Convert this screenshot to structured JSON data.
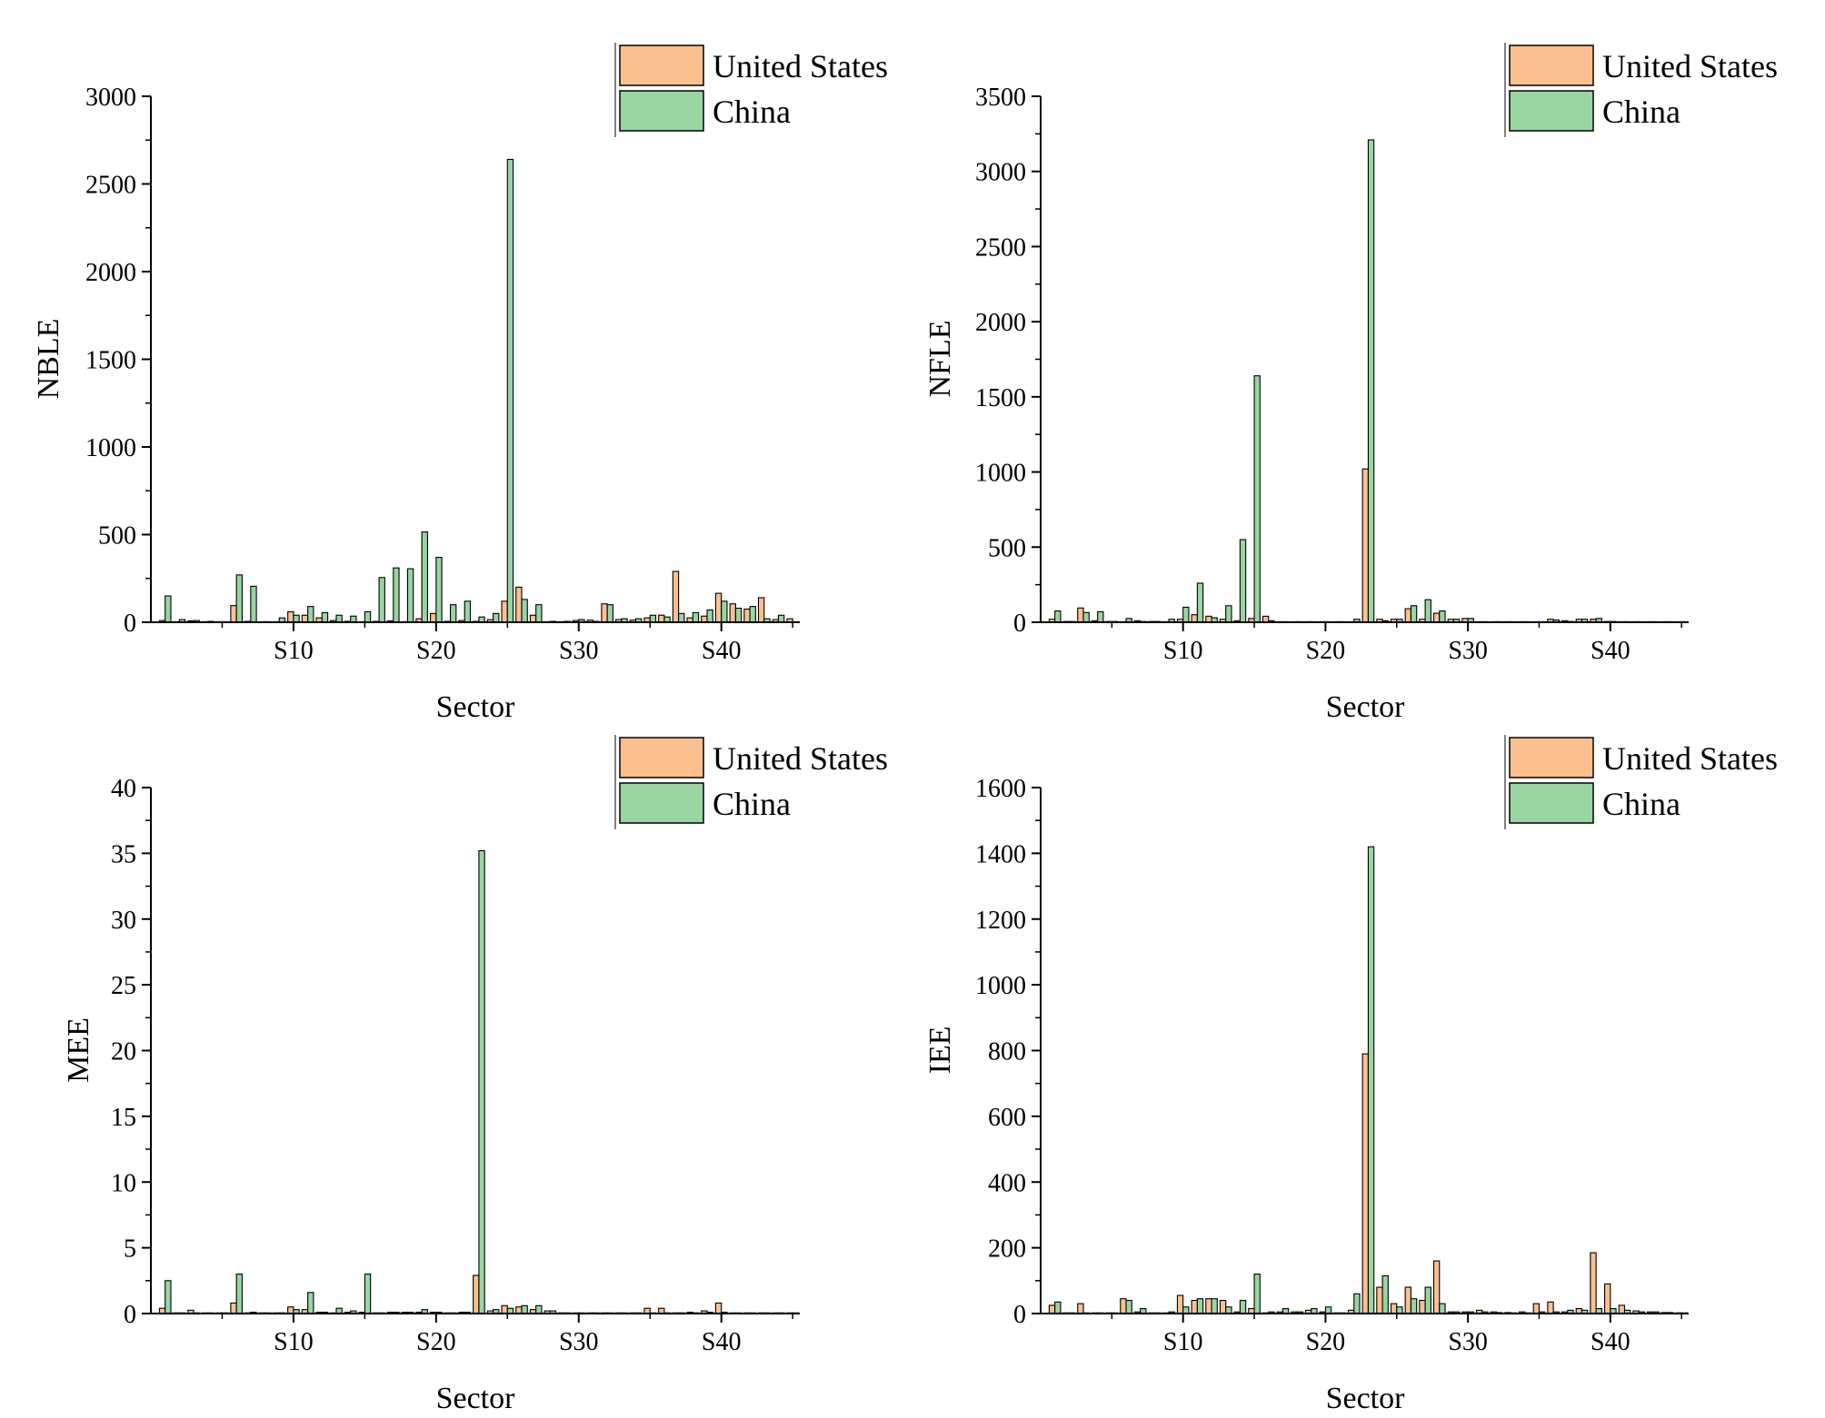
{
  "colors": {
    "us": "#fac090",
    "china": "#98d5a0",
    "edge": "#000000"
  },
  "chart_data": [
    {
      "type": "bar",
      "id": "nble",
      "ylabel": "NBLE",
      "xlabel": "Sector",
      "ylim": [
        0,
        3000
      ],
      "yticks": [
        "0",
        "500",
        "1000",
        "1500",
        "2000",
        "2500",
        "3000"
      ],
      "ytick_values": [
        0,
        500,
        1000,
        1500,
        2000,
        2500,
        3000
      ],
      "xticks": [
        "S10",
        "S20",
        "S30",
        "S40"
      ],
      "xtick_sectors": [
        10,
        20,
        30,
        40
      ],
      "legend": [
        "United States",
        "China"
      ],
      "legend_position": "top-right",
      "series": [
        {
          "name": "United States",
          "values": [
            10,
            2,
            8,
            3,
            2,
            95,
            5,
            2,
            3,
            60,
            40,
            25,
            10,
            5,
            2,
            5,
            8,
            3,
            20,
            50,
            5,
            10,
            5,
            15,
            120,
            200,
            40,
            2,
            3,
            10,
            12,
            105,
            15,
            12,
            25,
            40,
            290,
            25,
            35,
            165,
            105,
            75,
            140,
            15,
            20
          ]
        },
        {
          "name": "China",
          "values": [
            150,
            15,
            10,
            5,
            2,
            270,
            205,
            2,
            25,
            40,
            90,
            55,
            40,
            35,
            60,
            255,
            310,
            305,
            515,
            370,
            100,
            120,
            30,
            50,
            2640,
            130,
            100,
            5,
            5,
            15,
            5,
            100,
            20,
            20,
            40,
            30,
            50,
            55,
            70,
            120,
            80,
            90,
            20,
            40,
            3
          ]
        }
      ]
    },
    {
      "type": "bar",
      "id": "nfle",
      "ylabel": "NFLE",
      "xlabel": "Sector",
      "ylim": [
        0,
        3500
      ],
      "yticks": [
        "0",
        "500",
        "1000",
        "1500",
        "2000",
        "2500",
        "3000",
        "3500"
      ],
      "ytick_values": [
        0,
        500,
        1000,
        1500,
        2000,
        2500,
        3000,
        3500
      ],
      "xticks": [
        "S10",
        "S20",
        "S30",
        "S40"
      ],
      "xtick_sectors": [
        10,
        20,
        30,
        40
      ],
      "legend": [
        "United States",
        "China"
      ],
      "legend_position": "top-right",
      "series": [
        {
          "name": "United States",
          "values": [
            20,
            5,
            95,
            10,
            5,
            2,
            10,
            5,
            2,
            20,
            50,
            40,
            20,
            10,
            25,
            40,
            2,
            2,
            2,
            2,
            2,
            2,
            1020,
            20,
            20,
            90,
            20,
            60,
            20,
            25,
            2,
            2,
            2,
            2,
            2,
            20,
            10,
            20,
            20,
            5,
            2,
            2,
            2,
            2,
            2
          ]
        },
        {
          "name": "China",
          "values": [
            75,
            5,
            65,
            70,
            5,
            25,
            5,
            5,
            20,
            100,
            260,
            30,
            110,
            550,
            1640,
            10,
            2,
            2,
            2,
            2,
            2,
            20,
            3210,
            10,
            20,
            110,
            150,
            75,
            20,
            25,
            2,
            2,
            2,
            2,
            2,
            15,
            5,
            20,
            25,
            5,
            2,
            2,
            2,
            2,
            2
          ]
        }
      ]
    },
    {
      "type": "bar",
      "id": "mee",
      "ylabel": "MEE",
      "xlabel": "Sector",
      "ylim": [
        0,
        40
      ],
      "yticks": [
        "0",
        "5",
        "10",
        "15",
        "20",
        "25",
        "30",
        "35",
        "40"
      ],
      "ytick_values": [
        0,
        5,
        10,
        15,
        20,
        25,
        30,
        35,
        40
      ],
      "xticks": [
        "S10",
        "S20",
        "S30",
        "S40"
      ],
      "xtick_sectors": [
        10,
        20,
        30,
        40
      ],
      "legend": [
        "United States",
        "China"
      ],
      "legend_position": "top-right",
      "series": [
        {
          "name": "United States",
          "values": [
            0.4,
            0.05,
            0.25,
            0.05,
            0.05,
            0.8,
            0.05,
            0.05,
            0.05,
            0.5,
            0.3,
            0.1,
            0.05,
            0.1,
            0.1,
            0.05,
            0.1,
            0.1,
            0.1,
            0.1,
            0.05,
            0.1,
            2.9,
            0.2,
            0.6,
            0.5,
            0.3,
            0.2,
            0.05,
            0.05,
            0.05,
            0.05,
            0.05,
            0.05,
            0.4,
            0.4,
            0.05,
            0.1,
            0.2,
            0.8,
            0.05,
            0.05,
            0.05,
            0.05,
            0.05
          ]
        },
        {
          "name": "China",
          "values": [
            2.5,
            0.05,
            0.05,
            0.05,
            0.05,
            3.0,
            0.1,
            0.05,
            0.05,
            0.3,
            1.6,
            0.1,
            0.4,
            0.2,
            3.0,
            0.05,
            0.1,
            0.1,
            0.3,
            0.1,
            0.05,
            0.1,
            35.2,
            0.3,
            0.4,
            0.6,
            0.6,
            0.2,
            0.05,
            0.05,
            0.05,
            0.05,
            0.05,
            0.05,
            0.05,
            0.05,
            0.05,
            0.05,
            0.1,
            0.1,
            0.05,
            0.05,
            0.05,
            0.05,
            0.05
          ]
        }
      ]
    },
    {
      "type": "bar",
      "id": "iee",
      "ylabel": "IEE",
      "xlabel": "Sector",
      "ylim": [
        0,
        1600
      ],
      "yticks": [
        "0",
        "200",
        "400",
        "600",
        "800",
        "1000",
        "1200",
        "1400",
        "1600"
      ],
      "ytick_values": [
        0,
        200,
        400,
        600,
        800,
        1000,
        1200,
        1400,
        1600
      ],
      "xticks": [
        "S10",
        "S20",
        "S30",
        "S40"
      ],
      "xtick_sectors": [
        10,
        20,
        30,
        40
      ],
      "legend": [
        "United States",
        "China"
      ],
      "legend_position": "top-right",
      "series": [
        {
          "name": "United States",
          "values": [
            25,
            2,
            30,
            2,
            2,
            45,
            5,
            2,
            2,
            55,
            40,
            45,
            40,
            5,
            15,
            2,
            5,
            5,
            10,
            5,
            2,
            10,
            790,
            80,
            30,
            80,
            40,
            160,
            5,
            5,
            10,
            5,
            3,
            5,
            30,
            35,
            5,
            15,
            185,
            90,
            25,
            8,
            5,
            3,
            2
          ]
        },
        {
          "name": "China",
          "values": [
            35,
            2,
            2,
            2,
            2,
            40,
            15,
            2,
            5,
            20,
            45,
            45,
            20,
            40,
            120,
            5,
            15,
            5,
            15,
            20,
            2,
            60,
            1420,
            115,
            20,
            45,
            80,
            30,
            5,
            5,
            5,
            3,
            2,
            2,
            5,
            5,
            10,
            10,
            15,
            15,
            10,
            5,
            5,
            3,
            2
          ]
        }
      ]
    }
  ]
}
